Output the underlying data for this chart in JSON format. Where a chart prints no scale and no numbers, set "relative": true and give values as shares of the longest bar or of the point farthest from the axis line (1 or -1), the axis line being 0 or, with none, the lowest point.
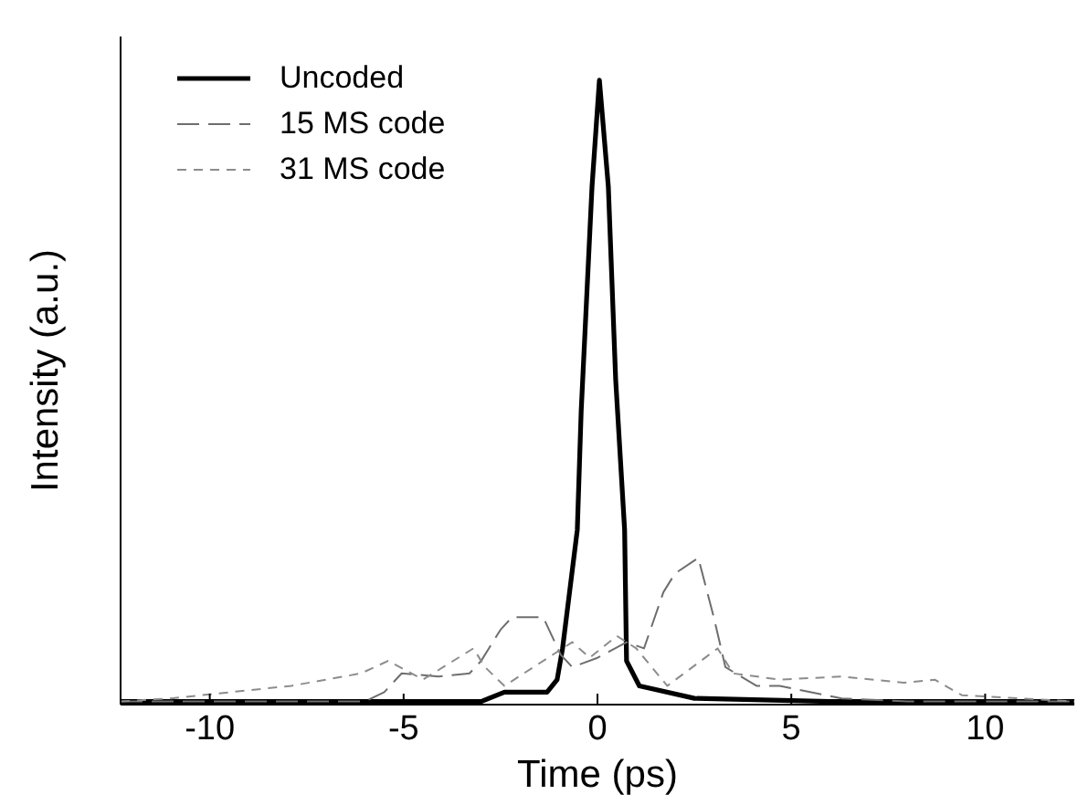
{
  "chart_data": {
    "type": "line",
    "relative": true,
    "xlabel": "Time (ps)",
    "ylabel": "Intensity (a.u.)",
    "xlim": [
      -12.3,
      12.3
    ],
    "xticks": [
      -10,
      -5,
      0,
      5,
      10
    ],
    "legend": "top left",
    "grid": false,
    "marker": "none",
    "series": [
      {
        "name": "Uncoded",
        "color": "#000000",
        "line_style": "solid",
        "x": [
          -12.3,
          -6,
          -3,
          -2.4,
          -1.3,
          -1.04,
          -0.9,
          -0.52,
          -0.42,
          -0.14,
          0.05,
          0.28,
          0.47,
          0.7,
          0.75,
          1.08,
          2.5,
          6,
          12.3
        ],
        "values": [
          0.005,
          0.005,
          0.005,
          0.02,
          0.02,
          0.04,
          0.09,
          0.28,
          0.47,
          0.83,
          1.0,
          0.83,
          0.52,
          0.28,
          0.07,
          0.03,
          0.01,
          0.005,
          0.005
        ]
      },
      {
        "name": "15 MS code",
        "color": "#6e6e6e",
        "line_style": "dashed",
        "x": [
          -12.3,
          -6,
          -5.5,
          -5.05,
          -4.1,
          -3.3,
          -3.0,
          -2.5,
          -2.2,
          -1.4,
          -0.95,
          -0.65,
          0,
          0.75,
          1.2,
          1.7,
          2.0,
          2.6,
          3.0,
          3.3,
          4.1,
          4.7,
          6.3,
          8,
          12.3
        ],
        "values": [
          0.005,
          0.005,
          0.02,
          0.05,
          0.045,
          0.05,
          0.07,
          0.12,
          0.14,
          0.14,
          0.08,
          0.06,
          0.075,
          0.1,
          0.09,
          0.18,
          0.21,
          0.235,
          0.14,
          0.06,
          0.03,
          0.03,
          0.01,
          0.005,
          0.005
        ]
      },
      {
        "name": "31 MS code",
        "color": "#8c8c8c",
        "line_style": "dotted",
        "x": [
          -12.3,
          -11,
          -7.9,
          -6.1,
          -5.4,
          -4.5,
          -3.2,
          -2.9,
          -2.4,
          -0.65,
          -0.2,
          0.5,
          1.0,
          1.8,
          3.1,
          3.5,
          4.7,
          6.3,
          7.9,
          8.7,
          9.4,
          12.3
        ],
        "values": [
          0.005,
          0.01,
          0.03,
          0.05,
          0.07,
          0.04,
          0.09,
          0.06,
          0.03,
          0.1,
          0.075,
          0.11,
          0.09,
          0.03,
          0.09,
          0.05,
          0.04,
          0.045,
          0.035,
          0.04,
          0.015,
          0.005
        ]
      }
    ]
  }
}
